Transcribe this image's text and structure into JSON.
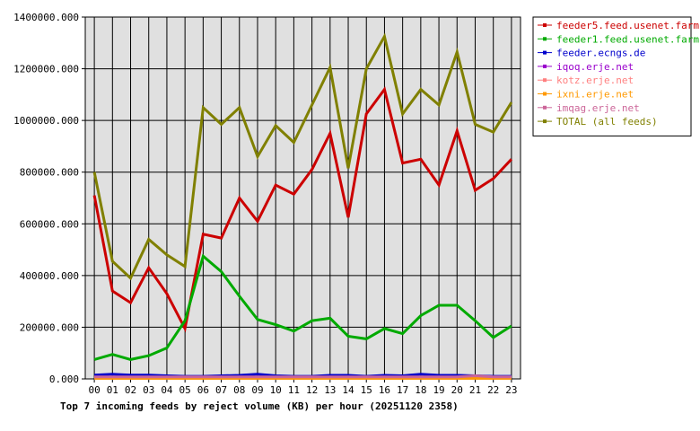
{
  "chart_data": {
    "type": "line",
    "title": "Top 7 incoming feeds by reject volume (KB) per hour (20251120 2358)",
    "categories": [
      "00",
      "01",
      "02",
      "03",
      "04",
      "05",
      "06",
      "07",
      "08",
      "09",
      "10",
      "11",
      "12",
      "13",
      "14",
      "15",
      "16",
      "17",
      "18",
      "19",
      "20",
      "21",
      "22",
      "23"
    ],
    "ylim": [
      0,
      1400000
    ],
    "y_ticks": [
      {
        "value": 0,
        "label": "0.000"
      },
      {
        "value": 200000,
        "label": "200000.000"
      },
      {
        "value": 400000,
        "label": "400000.000"
      },
      {
        "value": 600000,
        "label": "600000.000"
      },
      {
        "value": 800000,
        "label": "800000.000"
      },
      {
        "value": 1000000,
        "label": "1000000.000"
      },
      {
        "value": 1200000,
        "label": "1200000.000"
      },
      {
        "value": 1400000,
        "label": "1400000.000"
      }
    ],
    "grid": true,
    "legend_position": "right",
    "series": [
      {
        "name": "feeder5.feed.usenet.farm",
        "color": "#cc0000",
        "values": [
          710000,
          340000,
          295000,
          430000,
          330000,
          195000,
          560000,
          545000,
          700000,
          610000,
          750000,
          715000,
          810000,
          950000,
          625000,
          1025000,
          1120000,
          835000,
          850000,
          750000,
          960000,
          730000,
          775000,
          850000
        ]
      },
      {
        "name": "feeder1.feed.usenet.farm",
        "color": "#00aa00",
        "values": [
          75000,
          95000,
          75000,
          90000,
          120000,
          225000,
          475000,
          415000,
          320000,
          230000,
          210000,
          185000,
          225000,
          235000,
          165000,
          155000,
          195000,
          175000,
          245000,
          285000,
          285000,
          225000,
          160000,
          205000
        ]
      },
      {
        "name": "feeder.ecngs.de",
        "color": "#0000cc",
        "values": [
          15000,
          18000,
          15000,
          15000,
          12000,
          10000,
          10000,
          12000,
          14000,
          18000,
          12000,
          10000,
          10000,
          14000,
          14000,
          10000,
          14000,
          12000,
          18000,
          14000,
          14000,
          12000,
          10000,
          10000
        ]
      },
      {
        "name": "iqoq.erje.net",
        "color": "#9900cc",
        "values": [
          3000,
          3000,
          3000,
          3000,
          3000,
          3000,
          3000,
          3000,
          3000,
          3000,
          3000,
          3000,
          3000,
          3000,
          3000,
          3000,
          3000,
          3000,
          3000,
          3000,
          3000,
          3000,
          3000,
          3000
        ]
      },
      {
        "name": "kotz.erje.net",
        "color": "#ff8080",
        "values": [
          6000,
          6000,
          6000,
          6000,
          6000,
          6000,
          6000,
          6000,
          6000,
          6000,
          6000,
          6000,
          6000,
          6000,
          6000,
          6000,
          6000,
          6000,
          6000,
          6000,
          6000,
          6000,
          6000,
          6000
        ]
      },
      {
        "name": "ixni.erje.net",
        "color": "#ff9900",
        "values": [
          2000,
          2000,
          2000,
          2000,
          2000,
          2000,
          2000,
          2000,
          2000,
          2000,
          2000,
          2000,
          2000,
          2000,
          2000,
          2000,
          2000,
          2000,
          2000,
          2000,
          2000,
          2000,
          2000,
          2000
        ]
      },
      {
        "name": "imqag.erje.net",
        "color": "#cc6699",
        "values": [
          8000,
          8000,
          8000,
          8000,
          8000,
          8000,
          8000,
          8000,
          8000,
          8000,
          8000,
          8000,
          8000,
          8000,
          8000,
          8000,
          8000,
          8000,
          8000,
          8000,
          8000,
          12000,
          8000,
          8000
        ]
      },
      {
        "name": "TOTAL (all feeds)",
        "color": "#808000",
        "values": [
          800000,
          455000,
          390000,
          540000,
          480000,
          435000,
          1050000,
          985000,
          1050000,
          860000,
          980000,
          915000,
          1060000,
          1205000,
          815000,
          1200000,
          1325000,
          1025000,
          1120000,
          1060000,
          1265000,
          985000,
          955000,
          1070000
        ]
      }
    ]
  }
}
